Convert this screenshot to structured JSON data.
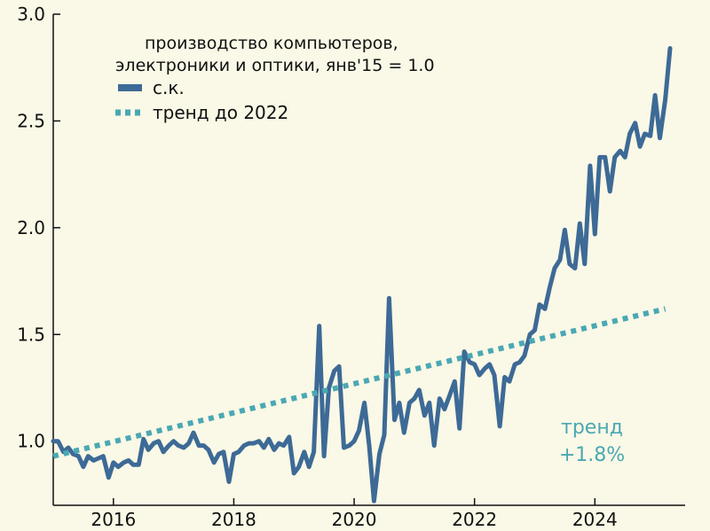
{
  "chart_data": {
    "type": "line",
    "title_lines": [
      "производство компьютеров,",
      "электроники и оптики, янв'15 = 1.0"
    ],
    "xlabel": "",
    "ylabel": "",
    "x_axis": {
      "min": 2015.0,
      "max": 2025.5,
      "ticks": [
        2016,
        2018,
        2020,
        2022,
        2024
      ],
      "tick_labels": [
        "2016",
        "2018",
        "2020",
        "2022",
        "2024"
      ]
    },
    "y_axis": {
      "min": 0.7,
      "max": 3.0,
      "ticks": [
        1.0,
        1.5,
        2.0,
        2.5,
        3.0
      ],
      "tick_labels": [
        "1.0",
        "1.5",
        "2.0",
        "2.5",
        "3.0"
      ]
    },
    "grid": false,
    "legend_position": "top-left",
    "series": [
      {
        "name": "с.к.",
        "color": "#3d6a96",
        "style": "solid",
        "x": [
          2015.0,
          2015.08,
          2015.17,
          2015.25,
          2015.33,
          2015.42,
          2015.5,
          2015.58,
          2015.67,
          2015.75,
          2015.83,
          2015.92,
          2016.0,
          2016.08,
          2016.17,
          2016.25,
          2016.33,
          2016.42,
          2016.5,
          2016.58,
          2016.67,
          2016.75,
          2016.83,
          2016.92,
          2017.0,
          2017.08,
          2017.17,
          2017.25,
          2017.33,
          2017.42,
          2017.5,
          2017.58,
          2017.67,
          2017.75,
          2017.83,
          2017.92,
          2018.0,
          2018.08,
          2018.17,
          2018.25,
          2018.33,
          2018.42,
          2018.5,
          2018.58,
          2018.67,
          2018.75,
          2018.83,
          2018.92,
          2019.0,
          2019.08,
          2019.17,
          2019.25,
          2019.33,
          2019.42,
          2019.5,
          2019.58,
          2019.67,
          2019.75,
          2019.83,
          2019.92,
          2020.0,
          2020.08,
          2020.17,
          2020.25,
          2020.33,
          2020.42,
          2020.5,
          2020.58,
          2020.67,
          2020.75,
          2020.83,
          2020.92,
          2021.0,
          2021.08,
          2021.17,
          2021.25,
          2021.33,
          2021.42,
          2021.5,
          2021.58,
          2021.67,
          2021.75,
          2021.83,
          2021.92,
          2022.0,
          2022.08,
          2022.17,
          2022.25,
          2022.33,
          2022.42,
          2022.5,
          2022.58,
          2022.67,
          2022.75,
          2022.83,
          2022.92,
          2023.0,
          2023.08,
          2023.17,
          2023.25,
          2023.33,
          2023.42,
          2023.5,
          2023.58,
          2023.67,
          2023.75,
          2023.83,
          2023.92,
          2024.0,
          2024.08,
          2024.17,
          2024.25,
          2024.33,
          2024.42,
          2024.5,
          2024.58,
          2024.67,
          2024.75,
          2024.83,
          2024.92,
          2025.0,
          2025.08,
          2025.17,
          2025.25
        ],
        "values": [
          1.0,
          1.0,
          0.95,
          0.97,
          0.94,
          0.93,
          0.88,
          0.93,
          0.91,
          0.92,
          0.93,
          0.83,
          0.9,
          0.88,
          0.9,
          0.91,
          0.89,
          0.89,
          1.01,
          0.96,
          0.99,
          1.0,
          0.95,
          0.98,
          1.0,
          0.98,
          0.97,
          0.99,
          1.04,
          0.98,
          0.98,
          0.96,
          0.9,
          0.94,
          0.95,
          0.81,
          0.94,
          0.95,
          0.98,
          0.99,
          0.99,
          1.0,
          0.97,
          1.01,
          0.96,
          0.99,
          0.98,
          1.02,
          0.85,
          0.88,
          0.95,
          0.88,
          0.95,
          1.54,
          0.93,
          1.25,
          1.33,
          1.35,
          0.97,
          0.98,
          1.0,
          1.05,
          1.18,
          0.98,
          0.72,
          0.94,
          1.03,
          1.67,
          1.1,
          1.18,
          1.04,
          1.18,
          1.2,
          1.24,
          1.12,
          1.18,
          0.98,
          1.2,
          1.15,
          1.21,
          1.28,
          1.06,
          1.42,
          1.37,
          1.36,
          1.31,
          1.34,
          1.36,
          1.31,
          1.07,
          1.3,
          1.28,
          1.36,
          1.37,
          1.4,
          1.5,
          1.52,
          1.64,
          1.62,
          1.72,
          1.81,
          1.85,
          1.99,
          1.83,
          1.81,
          2.02,
          1.83,
          2.29,
          1.97,
          2.33,
          2.33,
          2.17,
          2.33,
          2.36,
          2.33,
          2.44,
          2.49,
          2.38,
          2.44,
          2.43,
          2.62,
          2.42,
          2.6,
          2.84
        ]
      },
      {
        "name": "тренд до 2022",
        "color": "#4aa8b4",
        "style": "dotted",
        "x": [
          2015.0,
          2025.17
        ],
        "values": [
          0.93,
          1.62
        ]
      }
    ],
    "annotations": [
      {
        "text_lines": [
          "тренд",
          "+1.8%"
        ],
        "color": "#4aa8b4"
      }
    ]
  }
}
